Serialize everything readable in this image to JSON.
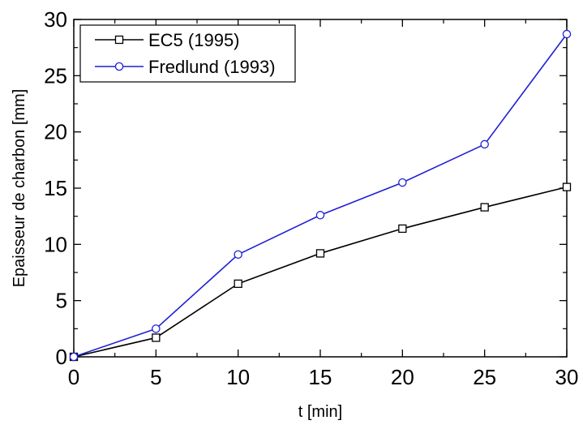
{
  "chart_data": {
    "type": "line",
    "xlabel": "t [min]",
    "ylabel": "Epaisseur de charbon [mm]",
    "xlim": [
      0,
      30
    ],
    "ylim": [
      0,
      30
    ],
    "x_ticks": [
      0,
      5,
      10,
      15,
      20,
      25,
      30
    ],
    "y_ticks": [
      0,
      5,
      10,
      15,
      20,
      25,
      30
    ],
    "x_tick_labels": [
      "0",
      "5",
      "10",
      "15",
      "20",
      "25",
      "30"
    ],
    "y_tick_labels": [
      "0",
      "5",
      "10",
      "15",
      "20",
      "25",
      "30"
    ],
    "grid": false,
    "legend_position": "top-left",
    "x": [
      0,
      5,
      10,
      15,
      20,
      25,
      30
    ],
    "series": [
      {
        "name": "EC5 (1995)",
        "marker": "square",
        "color": "#000000",
        "values": [
          0,
          1.7,
          6.5,
          9.2,
          11.4,
          13.3,
          15.1
        ]
      },
      {
        "name": "Fredlund (1993)",
        "marker": "circle",
        "color": "#1f1fd6",
        "values": [
          0,
          2.5,
          9.1,
          12.6,
          15.5,
          18.9,
          28.7
        ]
      }
    ]
  }
}
